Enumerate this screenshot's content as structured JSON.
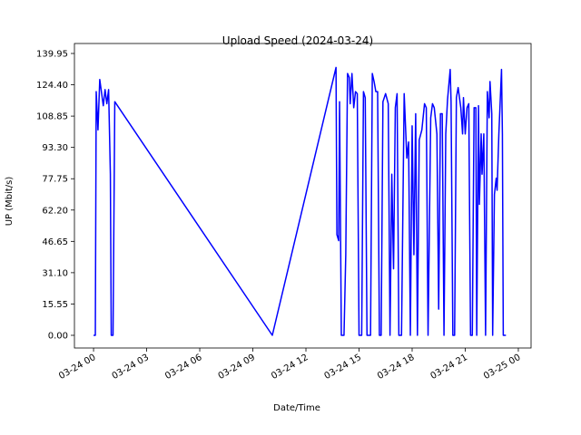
{
  "chart_data": {
    "type": "line",
    "title": "Upload Speed (2024-03-24)",
    "x_label": "Date/Time",
    "y_label": "UP (Mbit/s)",
    "color": "#0000ff",
    "x": [
      0.0,
      0.1,
      0.15,
      0.25,
      0.35,
      0.55,
      0.65,
      0.75,
      0.85,
      0.95,
      1.0,
      1.1,
      1.2,
      10.1,
      13.7,
      13.75,
      13.85,
      13.9,
      14.0,
      14.15,
      14.25,
      14.35,
      14.45,
      14.5,
      14.6,
      14.7,
      14.8,
      14.9,
      15.0,
      15.15,
      15.25,
      15.35,
      15.45,
      15.65,
      15.75,
      15.85,
      15.95,
      16.05,
      16.15,
      16.25,
      16.35,
      16.5,
      16.65,
      16.75,
      16.85,
      16.95,
      17.05,
      17.15,
      17.25,
      17.4,
      17.55,
      17.7,
      17.8,
      17.9,
      18.0,
      18.1,
      18.2,
      18.3,
      18.4,
      18.55,
      18.7,
      18.8,
      18.9,
      19.05,
      19.15,
      19.25,
      19.4,
      19.5,
      19.6,
      19.7,
      19.8,
      19.9,
      20.0,
      20.15,
      20.2,
      20.3,
      20.4,
      20.5,
      20.6,
      20.75,
      20.85,
      20.9,
      21.0,
      21.1,
      21.2,
      21.3,
      21.4,
      21.5,
      21.6,
      21.65,
      21.75,
      21.8,
      21.9,
      21.95,
      22.05,
      22.15,
      22.25,
      22.35,
      22.4,
      22.5,
      22.55,
      22.65,
      22.75,
      22.8,
      22.9,
      23.05,
      23.1,
      23.15,
      23.3
    ],
    "values": [
      0,
      0,
      121,
      102,
      127,
      114,
      122,
      115,
      122,
      80,
      0,
      0,
      116,
      0,
      133,
      50,
      47,
      116,
      0,
      0,
      40,
      130,
      128,
      115,
      130,
      113,
      121,
      120,
      0,
      0,
      121,
      118,
      0,
      0,
      130,
      126,
      121,
      121,
      0,
      0,
      116,
      120,
      115,
      0,
      80,
      33,
      113,
      120,
      0,
      0,
      120,
      88,
      96,
      0,
      104,
      40,
      110,
      0,
      97,
      102,
      115,
      113,
      0,
      108,
      115,
      113,
      100,
      13,
      110,
      110,
      0,
      100,
      117,
      132,
      116,
      0,
      0,
      118,
      123,
      113,
      100,
      118,
      100,
      113,
      115,
      0,
      0,
      113,
      113,
      0,
      114,
      65,
      100,
      80,
      100,
      0,
      121,
      108,
      126,
      110,
      0,
      70,
      78,
      72,
      100,
      132,
      100,
      0,
      0
    ],
    "xlim": [
      -1.08,
      24.72
    ],
    "xticks": [
      {
        "value": 0,
        "label": "03-24 00"
      },
      {
        "value": 3,
        "label": "03-24 03"
      },
      {
        "value": 6,
        "label": "03-24 06"
      },
      {
        "value": 9,
        "label": "03-24 09"
      },
      {
        "value": 12,
        "label": "03-24 12"
      },
      {
        "value": 15,
        "label": "03-24 15"
      },
      {
        "value": 18,
        "label": "03-24 18"
      },
      {
        "value": 21,
        "label": "03-24 21"
      },
      {
        "value": 24,
        "label": "03-25 00"
      }
    ],
    "ylim": [
      -6.3,
      144.9
    ],
    "yticks": [
      {
        "value": 0,
        "label": "0.00"
      },
      15.55,
      {
        "value": 31.1,
        "label": "31.10"
      },
      46.65,
      {
        "value": 62.2,
        "label": "62.20"
      },
      77.75,
      {
        "value": 93.3,
        "label": "93.30"
      },
      108.85,
      {
        "value": 124.4,
        "label": "124.40"
      },
      139.95
    ]
  }
}
